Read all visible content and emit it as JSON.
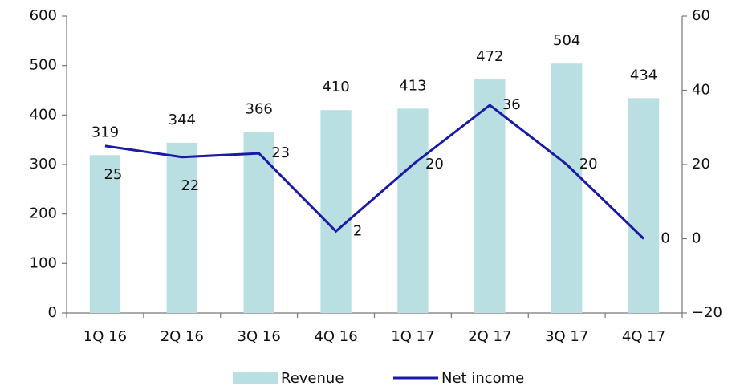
{
  "chart_data": {
    "type": "bar_line",
    "categories": [
      "1Q 16",
      "2Q 16",
      "3Q 16",
      "4Q 16",
      "1Q 17",
      "2Q 17",
      "3Q 17",
      "4Q 17"
    ],
    "series": [
      {
        "name": "Revenue",
        "color": "#b9dfe3",
        "type": "bar",
        "values": [
          319,
          344,
          366,
          410,
          413,
          472,
          504,
          434
        ]
      },
      {
        "name": "Net income",
        "color": "#1a1aa6",
        "type": "line",
        "axis": "y2",
        "values": [
          25,
          22,
          23,
          2,
          20,
          36,
          20,
          0
        ]
      }
    ],
    "ylim": [
      0,
      600
    ],
    "yticks": [
      0,
      100,
      200,
      300,
      400,
      500,
      600
    ],
    "y2lim": [
      -20,
      60
    ],
    "y2ticks": [
      {
        "value": -20,
        "label": "−20"
      },
      0,
      20,
      40,
      60
    ],
    "legend": "bottom"
  }
}
